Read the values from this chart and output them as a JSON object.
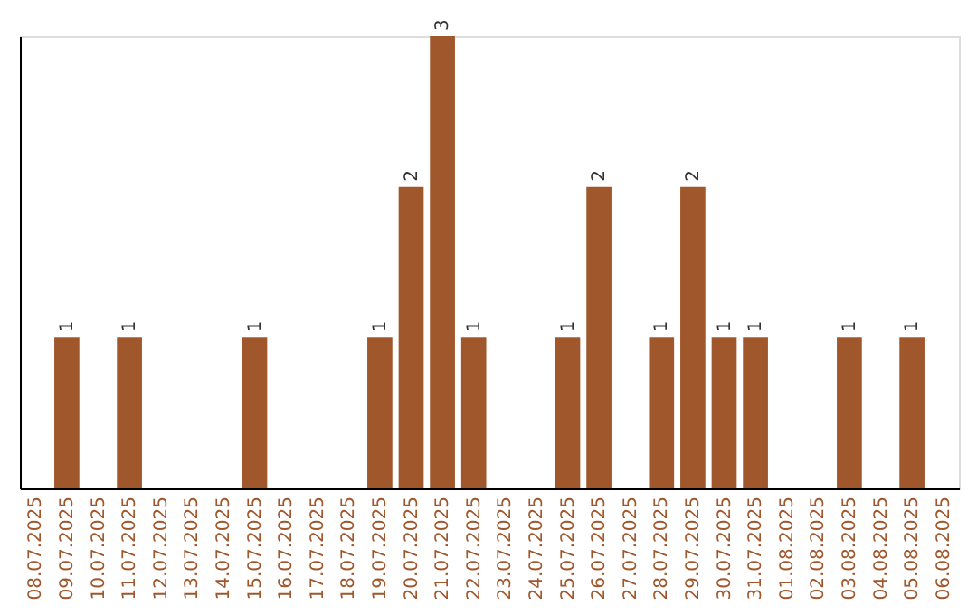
{
  "chart_data": {
    "type": "bar",
    "categories": [
      "08.07.2025",
      "09.07.2025",
      "10.07.2025",
      "11.07.2025",
      "12.07.2025",
      "13.07.2025",
      "14.07.2025",
      "15.07.2025",
      "16.07.2025",
      "17.07.2025",
      "18.07.2025",
      "19.07.2025",
      "20.07.2025",
      "21.07.2025",
      "22.07.2025",
      "23.07.2025",
      "24.07.2025",
      "25.07.2025",
      "26.07.2025",
      "27.07.2025",
      "28.07.2025",
      "29.07.2025",
      "30.07.2025",
      "31.07.2025",
      "01.08.2025",
      "02.08.2025",
      "03.08.2025",
      "04.08.2025",
      "05.08.2025",
      "06.08.2025"
    ],
    "values": [
      0,
      1,
      0,
      1,
      0,
      0,
      0,
      1,
      0,
      0,
      0,
      1,
      2,
      3,
      1,
      0,
      0,
      1,
      2,
      0,
      1,
      2,
      1,
      1,
      0,
      0,
      1,
      0,
      1,
      0
    ],
    "value_labels": [
      null,
      "1",
      null,
      "1",
      null,
      null,
      null,
      "1",
      null,
      null,
      null,
      "1",
      "2",
      "3",
      "1",
      null,
      null,
      "1",
      "2",
      null,
      "1",
      "2",
      "1",
      "1",
      null,
      null,
      "1",
      null,
      "1",
      null
    ],
    "color": "#a0572b",
    "grid": false,
    "tick_labels": "x"
  }
}
